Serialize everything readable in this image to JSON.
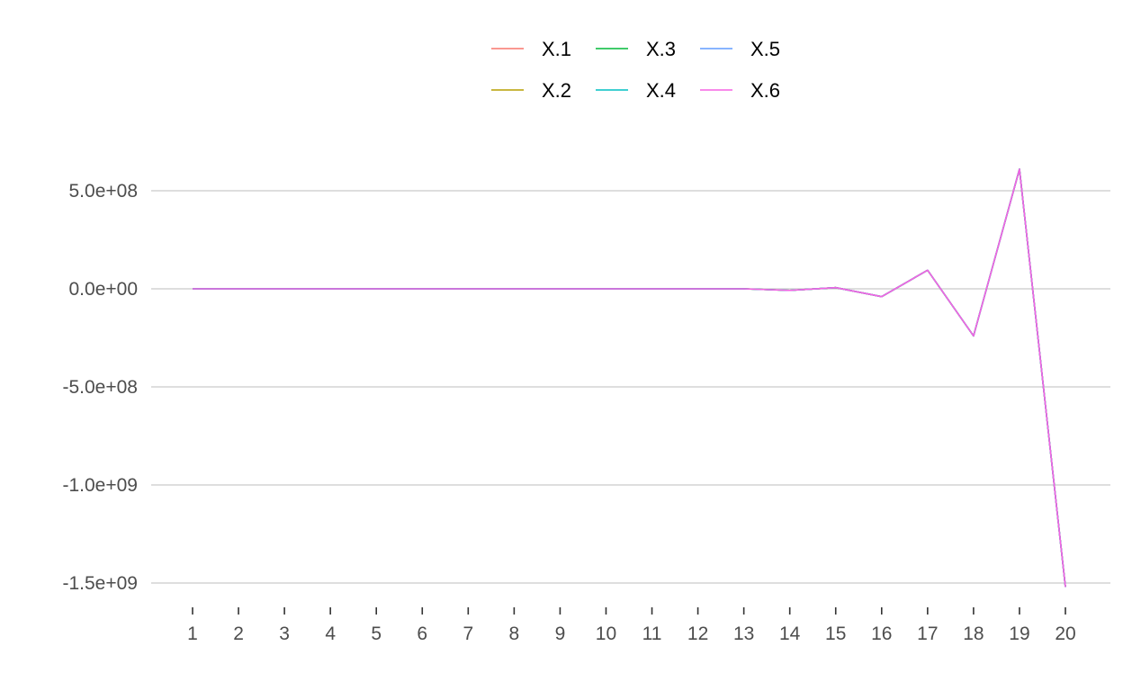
{
  "chart_data": {
    "type": "line",
    "title": "",
    "xlabel": "",
    "ylabel": "",
    "x": [
      1,
      2,
      3,
      4,
      5,
      6,
      7,
      8,
      9,
      10,
      11,
      12,
      13,
      14,
      15,
      16,
      17,
      18,
      19,
      20
    ],
    "x_tick_labels": [
      "1",
      "2",
      "3",
      "4",
      "5",
      "6",
      "7",
      "8",
      "9",
      "10",
      "11",
      "12",
      "13",
      "14",
      "15",
      "16",
      "17",
      "18",
      "19",
      "20"
    ],
    "y_ticks": [
      500000000,
      0,
      -500000000,
      -1000000000,
      -1500000000
    ],
    "y_tick_labels": [
      "5.0e+08",
      "0.0e+00",
      "-5.0e+08",
      "-1.0e+09",
      "-1.5e+09"
    ],
    "ylim": [
      -1550000000,
      620000000
    ],
    "grid": "horizontal major",
    "legend_position": "top",
    "series": [
      {
        "name": "X.1",
        "color": "#F8766D",
        "values": [
          0,
          0,
          0,
          0,
          0,
          0,
          0,
          0,
          0,
          0,
          0,
          0,
          0,
          -8000000,
          6000000,
          -40000000,
          95000000,
          -240000000,
          610000000,
          -1520000000
        ]
      },
      {
        "name": "X.2",
        "color": "#B79F00",
        "values": [
          0,
          0,
          0,
          0,
          0,
          0,
          0,
          0,
          0,
          0,
          0,
          0,
          0,
          -8000000,
          6000000,
          -40000000,
          95000000,
          -240000000,
          610000000,
          -1520000000
        ]
      },
      {
        "name": "X.3",
        "color": "#00BA38",
        "values": [
          0,
          0,
          0,
          0,
          0,
          0,
          0,
          0,
          0,
          0,
          0,
          0,
          0,
          -8000000,
          6000000,
          -40000000,
          95000000,
          -240000000,
          610000000,
          -1520000000
        ]
      },
      {
        "name": "X.4",
        "color": "#00BFC4",
        "values": [
          0,
          0,
          0,
          0,
          0,
          0,
          0,
          0,
          0,
          0,
          0,
          0,
          0,
          -8000000,
          6000000,
          -40000000,
          95000000,
          -240000000,
          610000000,
          -1520000000
        ]
      },
      {
        "name": "X.5",
        "color": "#619CFF",
        "values": [
          0,
          0,
          0,
          0,
          0,
          0,
          0,
          0,
          0,
          0,
          0,
          0,
          0,
          -8000000,
          6000000,
          -40000000,
          95000000,
          -240000000,
          610000000,
          -1520000000
        ]
      },
      {
        "name": "X.6",
        "color": "#F564E3",
        "values": [
          0,
          0,
          0,
          0,
          0,
          0,
          0,
          0,
          0,
          0,
          0,
          0,
          0,
          -8000000,
          6000000,
          -40000000,
          95000000,
          -240000000,
          610000000,
          -1520000000
        ]
      }
    ]
  }
}
